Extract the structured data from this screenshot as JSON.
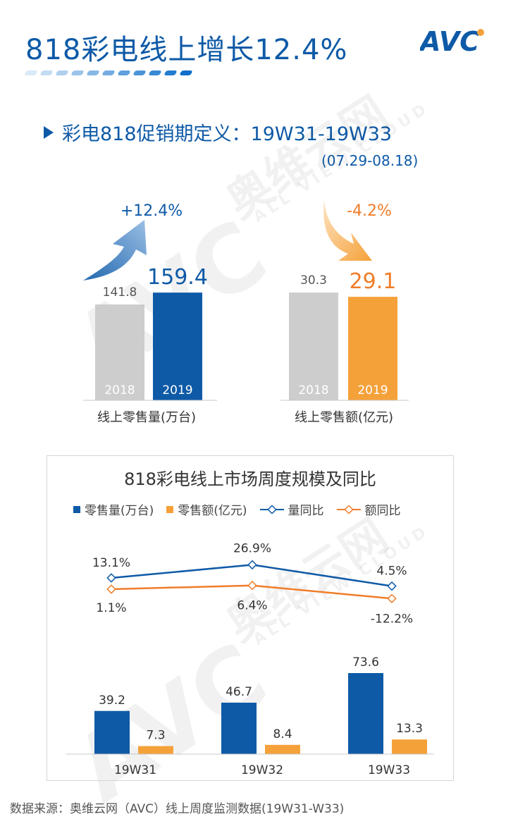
{
  "header": {
    "title": "818彩电线上增长12.4%",
    "logo_text": "AVC"
  },
  "promo": {
    "definition": "彩电818促销期定义：19W31-19W33",
    "date_range": "(07.29-08.18)"
  },
  "watermark": {
    "cn": "奥维云网",
    "en": "ALL VIEW CLOUD",
    "logo": "AVC"
  },
  "colors": {
    "blue": "#0e5aa7",
    "orange": "#f5a13a",
    "gray": "#cdcdcd",
    "title_blue": "#0e5aa7"
  },
  "chart_data": [
    {
      "type": "bar",
      "categories": [
        "2018",
        "2019"
      ],
      "values": [
        141.8,
        159.4
      ],
      "xlabel": "线上零售量(万台)",
      "growth": "+12.4%",
      "ylim": [
        0,
        170
      ]
    },
    {
      "type": "bar",
      "categories": [
        "2018",
        "2019"
      ],
      "values": [
        30.3,
        29.1
      ],
      "xlabel": "线上零售额(亿元)",
      "growth": "-4.2%",
      "ylim": [
        0,
        32.3
      ]
    },
    {
      "type": "bar",
      "title": "818彩电线上市场周度规模及同比",
      "categories": [
        "19W31",
        "19W32",
        "19W33"
      ],
      "series": [
        {
          "name": "零售量(万台)",
          "type": "bar",
          "values": [
            39.2,
            46.7,
            73.6
          ]
        },
        {
          "name": "零售额(亿元)",
          "type": "bar",
          "values": [
            7.3,
            8.4,
            13.3
          ]
        },
        {
          "name": "量同比",
          "type": "line",
          "values": [
            13.1,
            26.9,
            4.5
          ],
          "labels": [
            "13.1%",
            "26.9%",
            "4.5%"
          ]
        },
        {
          "name": "额同比",
          "type": "line",
          "values": [
            1.1,
            6.4,
            -12.2
          ],
          "labels": [
            "1.1%",
            "6.4%",
            "-12.2%"
          ]
        }
      ],
      "legend_position": "top"
    }
  ],
  "footer": {
    "source": "数据来源：奥维云网（AVC）线上周度监测数据(19W31-W33)"
  }
}
